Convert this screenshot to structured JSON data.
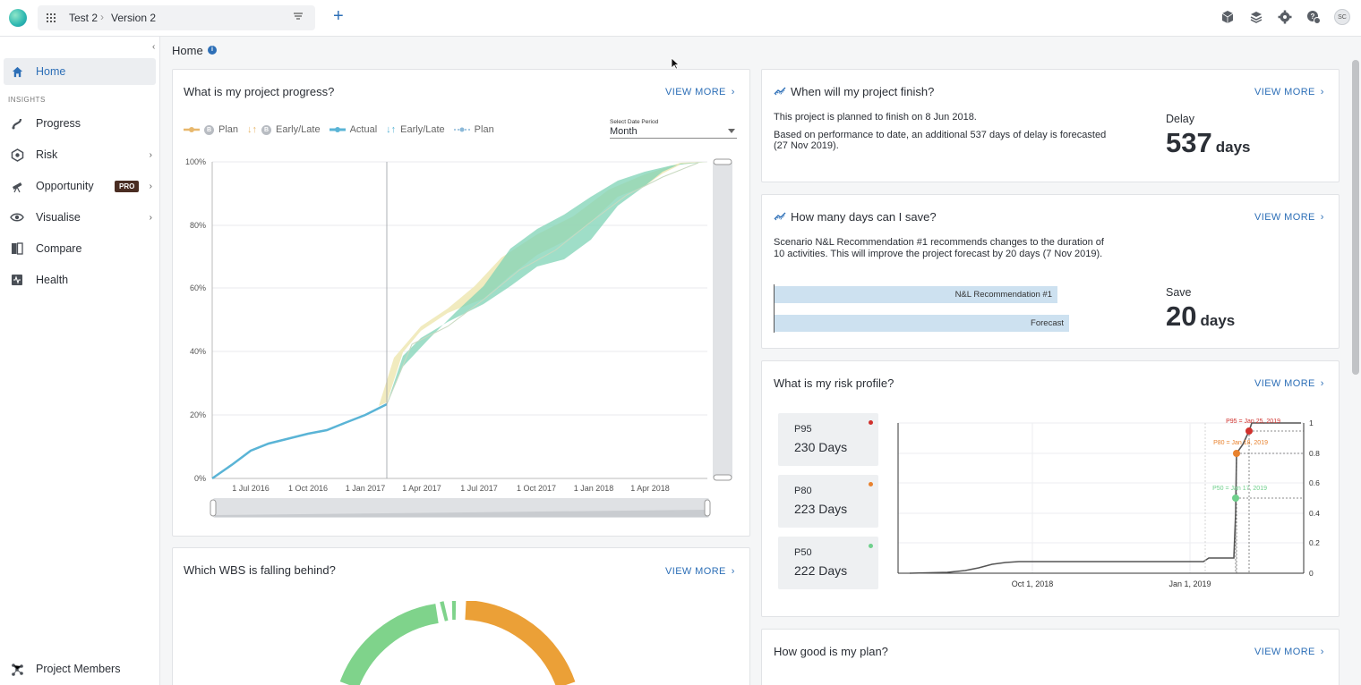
{
  "topbar": {
    "project": "Test 2",
    "separator": "›",
    "version": "Version 2"
  },
  "sidebar": {
    "section": "INSIGHTS",
    "items": [
      {
        "label": "Home",
        "icon": "home-icon",
        "active": true
      },
      {
        "label": "Progress",
        "icon": "progress-icon"
      },
      {
        "label": "Risk",
        "icon": "risk-icon"
      },
      {
        "label": "Opportunity",
        "icon": "telescope-icon",
        "badge": "PRO"
      },
      {
        "label": "Visualise",
        "icon": "eye-icon"
      },
      {
        "label": "Compare",
        "icon": "compare-icon"
      },
      {
        "label": "Health",
        "icon": "health-icon"
      }
    ],
    "footer": "Project Members"
  },
  "page": {
    "title": "Home",
    "info": "i"
  },
  "view_more": "VIEW MORE",
  "progress_card": {
    "title": "What is my project progress?",
    "legend": [
      {
        "label": "Plan",
        "badge": "B"
      },
      {
        "label": "Early/Late",
        "badge": "B"
      },
      {
        "label": "Actual"
      },
      {
        "label": "Early/Late"
      },
      {
        "label": "Plan"
      }
    ],
    "date_period_label": "Select Date Period",
    "date_period_value": "Month"
  },
  "finish_card": {
    "title": "When will my project finish?",
    "line1": "This project is planned to finish on 8 Jun 2018.",
    "line2": "Based on performance to date, an additional 537 days of delay is forecasted",
    "line3": "(27 Nov 2019).",
    "metric_label": "Delay",
    "metric_value": "537",
    "metric_unit": "days"
  },
  "save_card": {
    "title": "How many days can I save?",
    "line1": "Scenario N&L Recommendation #1 recommends changes to the duration of",
    "line2": "10 activities. This will improve the project forecast by 20 days (7 Nov 2019).",
    "bar1": "N&L Recommendation #1",
    "bar2": "Forecast",
    "metric_label": "Save",
    "metric_value": "20",
    "metric_unit": "days"
  },
  "risk_card": {
    "title": "What is my risk profile?",
    "pills": [
      {
        "name": "P95",
        "value": "230 Days",
        "color": "#d0312d"
      },
      {
        "name": "P80",
        "value": "223 Days",
        "color": "#e8822e"
      },
      {
        "name": "P50",
        "value": "222 Days",
        "color": "#6fd08c"
      }
    ],
    "annotations": [
      "P95 = Jan 25, 2019",
      "P80 = Jan 18, 2019",
      "P50 = Jan 17, 2019"
    ]
  },
  "wbs_card": {
    "title": "Which WBS is falling behind?"
  },
  "plan_card": {
    "title": "How good is my plan?"
  },
  "colors": {
    "accent": "#2d6fb7",
    "plan": "#e8b86d",
    "actual": "#5ab4d6",
    "band_green": "#7fd3b6",
    "band_yellow": "#efe7b4"
  },
  "chart_data": [
    {
      "type": "area",
      "yticks": [
        "100%",
        "80%",
        "60%",
        "40%",
        "20%",
        "0%"
      ],
      "xticks": [
        "1 Jul 2016",
        "1 Oct 2016",
        "1 Jan 2017",
        "1 Apr 2017",
        "1 Jul 2017",
        "1 Oct 2017",
        "1 Jan 2018",
        "1 Apr 2018"
      ],
      "ylim": [
        0,
        100
      ],
      "actual": {
        "x": [
          "Apr 2016",
          "1 Jul 2016",
          "1 Oct 2016",
          "1 Jan 2017",
          "15 Jan 2017"
        ],
        "y": [
          0,
          10,
          14,
          20,
          23
        ]
      },
      "plan": {
        "x": [
          "15 Jan 2017",
          "1 Apr 2017",
          "1 Jul 2017",
          "1 Oct 2017",
          "1 Jan 2018",
          "1 Apr 2018",
          "Jun 2018"
        ],
        "y": [
          23,
          45,
          60,
          78,
          90,
          98,
          100
        ]
      }
    },
    {
      "type": "line",
      "xticks": [
        "Oct 1, 2018",
        "Jan 1, 2019"
      ],
      "yticks": [
        "1",
        "0.8",
        "0.6",
        "0.4",
        "0.2",
        "0"
      ],
      "ylim": [
        0,
        1
      ]
    }
  ]
}
